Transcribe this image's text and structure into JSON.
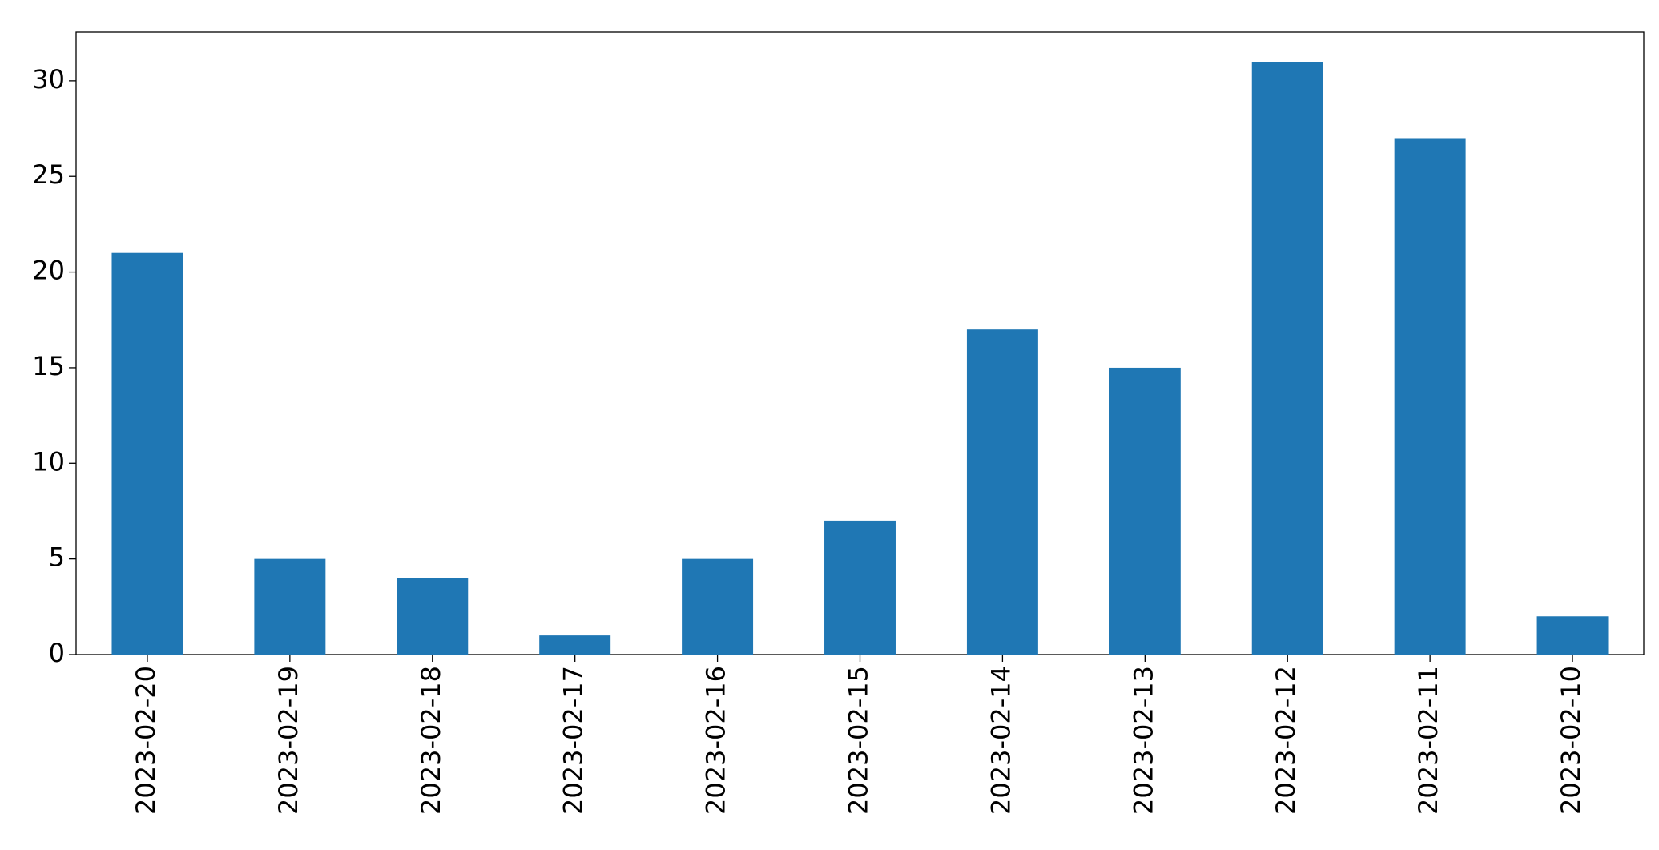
{
  "chart_data": {
    "type": "bar",
    "categories": [
      "2023-02-20",
      "2023-02-19",
      "2023-02-18",
      "2023-02-17",
      "2023-02-16",
      "2023-02-15",
      "2023-02-14",
      "2023-02-13",
      "2023-02-12",
      "2023-02-11",
      "2023-02-10"
    ],
    "values": [
      21,
      5,
      4,
      1,
      5,
      7,
      17,
      15,
      31,
      27,
      2
    ],
    "color": "#1f77b4",
    "ylim": [
      0,
      32.55
    ],
    "yticks": [
      0,
      5,
      10,
      15,
      20,
      25,
      30
    ],
    "grid": false
  }
}
